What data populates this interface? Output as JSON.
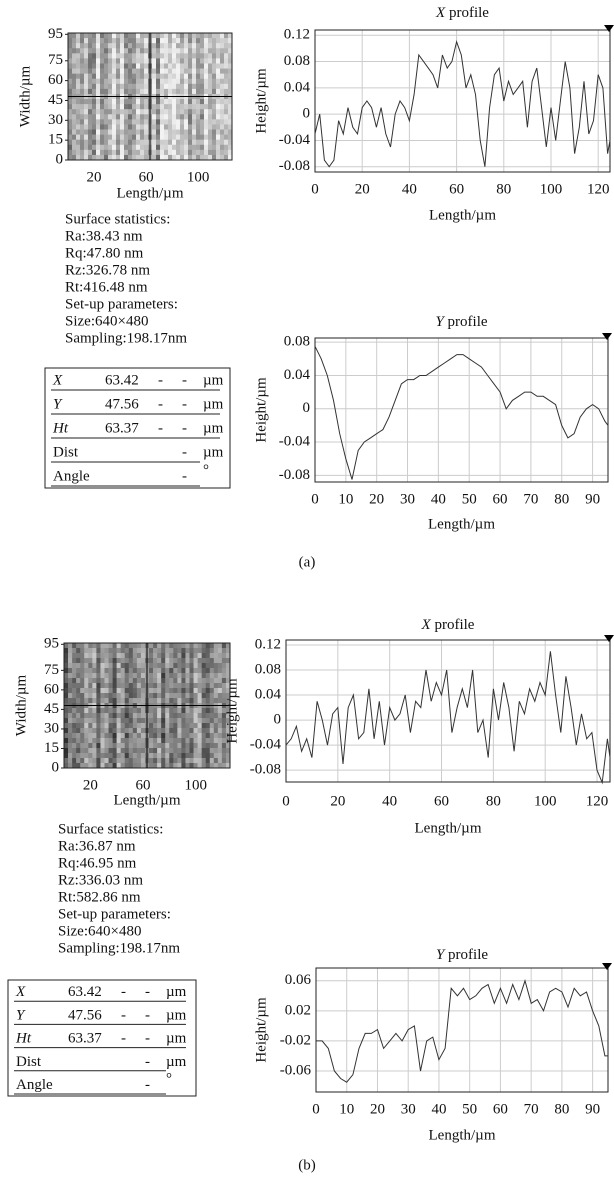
{
  "chart_data": [
    {
      "type": "image",
      "xlabel": "Length/µm",
      "ylabel": "Width/µm",
      "xlim": [
        0,
        126
      ],
      "ylim": [
        0,
        96
      ],
      "xticks": [
        20,
        60,
        100
      ],
      "yticks": [
        0,
        15,
        30,
        45,
        60,
        75,
        95
      ]
    },
    {
      "type": "line",
      "title": "X profile",
      "xlabel": "Length/µm",
      "ylabel": "Height/µm",
      "xlim": [
        0,
        125
      ],
      "ylim": [
        -0.088,
        0.128
      ],
      "xticks": [
        0,
        20,
        40,
        60,
        80,
        100,
        120
      ],
      "yticks": [
        -0.08,
        -0.04,
        0,
        0.04,
        0.08,
        0.12
      ],
      "grid": true,
      "color": "#333333",
      "x": [
        0,
        2,
        4,
        6,
        8,
        10,
        12,
        14,
        16,
        18,
        20,
        22,
        24,
        26,
        28,
        30,
        32,
        34,
        36,
        38,
        40,
        42,
        44,
        46,
        48,
        50,
        52,
        54,
        56,
        58,
        60,
        62,
        64,
        66,
        68,
        70,
        72,
        74,
        76,
        78,
        80,
        82,
        84,
        86,
        88,
        90,
        92,
        94,
        96,
        98,
        100,
        102,
        104,
        106,
        108,
        110,
        112,
        114,
        116,
        118,
        120,
        122,
        124,
        125
      ],
      "values": [
        -0.03,
        0.0,
        -0.07,
        -0.08,
        -0.07,
        -0.01,
        -0.03,
        0.01,
        -0.02,
        -0.03,
        0.01,
        0.02,
        0.01,
        -0.02,
        0.01,
        -0.03,
        -0.05,
        0.0,
        0.02,
        0.01,
        -0.01,
        0.03,
        0.09,
        0.08,
        0.07,
        0.06,
        0.04,
        0.09,
        0.07,
        0.08,
        0.11,
        0.09,
        0.04,
        0.06,
        0.03,
        -0.04,
        -0.08,
        0.01,
        0.06,
        0.07,
        0.02,
        0.05,
        0.03,
        0.04,
        0.05,
        -0.02,
        0.05,
        0.07,
        0.01,
        -0.05,
        0.01,
        -0.04,
        0.02,
        0.08,
        0.04,
        -0.06,
        -0.02,
        0.05,
        -0.03,
        -0.01,
        0.06,
        0.04,
        -0.06,
        -0.04
      ]
    },
    {
      "type": "line",
      "title": "Y profile",
      "xlabel": "Length/µm",
      "ylabel": "Height/µm",
      "xlim": [
        0,
        95
      ],
      "ylim": [
        -0.088,
        0.085
      ],
      "xticks": [
        0,
        10,
        20,
        30,
        40,
        50,
        60,
        70,
        80,
        90
      ],
      "yticks": [
        -0.08,
        -0.04,
        0,
        0.04,
        0.08
      ],
      "grid": true,
      "color": "#333333",
      "x": [
        0,
        2,
        4,
        6,
        8,
        10,
        12,
        14,
        16,
        18,
        20,
        22,
        24,
        26,
        28,
        30,
        32,
        34,
        36,
        38,
        40,
        42,
        44,
        46,
        48,
        50,
        52,
        54,
        56,
        58,
        60,
        62,
        64,
        66,
        68,
        70,
        72,
        74,
        76,
        78,
        80,
        82,
        84,
        86,
        88,
        90,
        92,
        94,
        95
      ],
      "values": [
        0.075,
        0.06,
        0.04,
        0.01,
        -0.03,
        -0.06,
        -0.085,
        -0.05,
        -0.04,
        -0.035,
        -0.03,
        -0.025,
        -0.01,
        0.01,
        0.03,
        0.035,
        0.035,
        0.04,
        0.04,
        0.045,
        0.05,
        0.055,
        0.06,
        0.065,
        0.065,
        0.06,
        0.055,
        0.05,
        0.04,
        0.03,
        0.02,
        0.0,
        0.01,
        0.015,
        0.02,
        0.02,
        0.015,
        0.015,
        0.01,
        0.005,
        -0.02,
        -0.035,
        -0.03,
        -0.01,
        0.0,
        0.005,
        0.0,
        -0.015,
        -0.02
      ]
    },
    {
      "type": "image",
      "xlabel": "Length/µm",
      "ylabel": "Width/µm",
      "xlim": [
        0,
        126
      ],
      "ylim": [
        0,
        96
      ],
      "xticks": [
        20,
        60,
        100
      ],
      "yticks": [
        0,
        15,
        30,
        45,
        60,
        75,
        95
      ]
    },
    {
      "type": "line",
      "title": "X profile",
      "xlabel": "Length/µm",
      "ylabel": "Height/µm",
      "xlim": [
        0,
        125
      ],
      "ylim": [
        -0.099,
        0.128
      ],
      "xticks": [
        0,
        20,
        40,
        60,
        80,
        100,
        120
      ],
      "yticks": [
        -0.08,
        -0.04,
        0,
        0.04,
        0.08,
        0.12
      ],
      "grid": true,
      "color": "#333333",
      "x": [
        0,
        2,
        4,
        6,
        8,
        10,
        12,
        14,
        16,
        18,
        20,
        22,
        24,
        26,
        28,
        30,
        32,
        34,
        36,
        38,
        40,
        42,
        44,
        46,
        48,
        50,
        52,
        54,
        56,
        58,
        60,
        62,
        64,
        66,
        68,
        70,
        72,
        74,
        76,
        78,
        80,
        82,
        84,
        86,
        88,
        90,
        92,
        94,
        96,
        98,
        100,
        102,
        104,
        106,
        108,
        110,
        112,
        114,
        116,
        118,
        120,
        122,
        124,
        125
      ],
      "values": [
        -0.04,
        -0.03,
        -0.01,
        -0.05,
        -0.03,
        -0.06,
        0.03,
        0.0,
        -0.04,
        0.01,
        0.02,
        -0.07,
        0.02,
        0.04,
        -0.03,
        -0.02,
        0.05,
        -0.03,
        0.03,
        -0.04,
        0.02,
        0.0,
        0.01,
        0.04,
        -0.02,
        0.03,
        0.02,
        0.08,
        0.03,
        0.06,
        0.04,
        0.08,
        -0.02,
        0.02,
        0.05,
        0.02,
        0.08,
        -0.02,
        0.0,
        -0.06,
        0.05,
        0.0,
        0.06,
        0.02,
        -0.05,
        0.03,
        0.01,
        0.05,
        0.03,
        0.06,
        0.04,
        0.11,
        0.04,
        -0.02,
        0.07,
        0.02,
        -0.04,
        0.01,
        -0.03,
        -0.02,
        -0.08,
        -0.1,
        -0.03,
        -0.06
      ]
    },
    {
      "type": "line",
      "title": "Y profile",
      "xlabel": "Length/µm",
      "ylabel": "Height/µm",
      "xlim": [
        0,
        95
      ],
      "ylim": [
        -0.088,
        0.077
      ],
      "xticks": [
        0,
        10,
        20,
        30,
        40,
        50,
        60,
        70,
        80,
        90
      ],
      "yticks": [
        -0.06,
        -0.02,
        0.02,
        0.06
      ],
      "grid": true,
      "color": "#333333",
      "x": [
        0,
        2,
        4,
        6,
        8,
        10,
        12,
        14,
        16,
        18,
        20,
        22,
        24,
        26,
        28,
        30,
        32,
        34,
        36,
        38,
        40,
        42,
        44,
        46,
        48,
        50,
        52,
        54,
        56,
        58,
        60,
        62,
        64,
        66,
        68,
        70,
        72,
        74,
        76,
        78,
        80,
        82,
        84,
        86,
        88,
        90,
        92,
        94,
        95
      ],
      "values": [
        -0.02,
        -0.02,
        -0.03,
        -0.06,
        -0.07,
        -0.075,
        -0.065,
        -0.03,
        -0.01,
        -0.01,
        -0.005,
        -0.03,
        -0.02,
        -0.01,
        -0.02,
        -0.005,
        0.0,
        -0.06,
        -0.02,
        -0.015,
        -0.045,
        -0.03,
        0.05,
        0.04,
        0.05,
        0.035,
        0.04,
        0.05,
        0.055,
        0.03,
        0.05,
        0.03,
        0.055,
        0.035,
        0.06,
        0.03,
        0.035,
        0.02,
        0.045,
        0.05,
        0.045,
        0.025,
        0.05,
        0.04,
        0.045,
        0.02,
        0.0,
        -0.04,
        -0.04
      ]
    }
  ],
  "panels": [
    {
      "statistics": [
        "Surface statistics:",
        "Ra:38.43 nm",
        "Rq:47.80 nm",
        "Rz:326.78 nm",
        "Rt:416.48 nm",
        "Set-up parameters:",
        "Size:640×480",
        "Sampling:198.17nm"
      ],
      "table": {
        "rows": [
          [
            "X",
            "63.42",
            "-",
            "-",
            "µm"
          ],
          [
            "Y",
            "47.56",
            "-",
            "-",
            "µm"
          ],
          [
            "Ht",
            "63.37",
            "-",
            "-",
            "µm"
          ],
          [
            "Dist",
            "-",
            "µm"
          ],
          [
            "Angle",
            "-",
            "°"
          ]
        ]
      },
      "caption": "(a)"
    },
    {
      "statistics": [
        "Surface statistics:",
        "Ra:36.87 nm",
        "Rq:46.95 nm",
        "Rz:336.03 nm",
        "Rt:582.86 nm",
        "Set-up parameters:",
        "Size:640×480",
        "Sampling:198.17nm"
      ],
      "table": {
        "rows": [
          [
            "X",
            "63.42",
            "-",
            "-",
            "µm"
          ],
          [
            "Y",
            "47.56",
            "-",
            "-",
            "µm"
          ],
          [
            "Ht",
            "63.37",
            "-",
            "-",
            "µm"
          ],
          [
            "Dist",
            "-",
            "µm"
          ],
          [
            "Angle",
            "-",
            "°"
          ]
        ]
      },
      "caption": "(b)"
    }
  ]
}
